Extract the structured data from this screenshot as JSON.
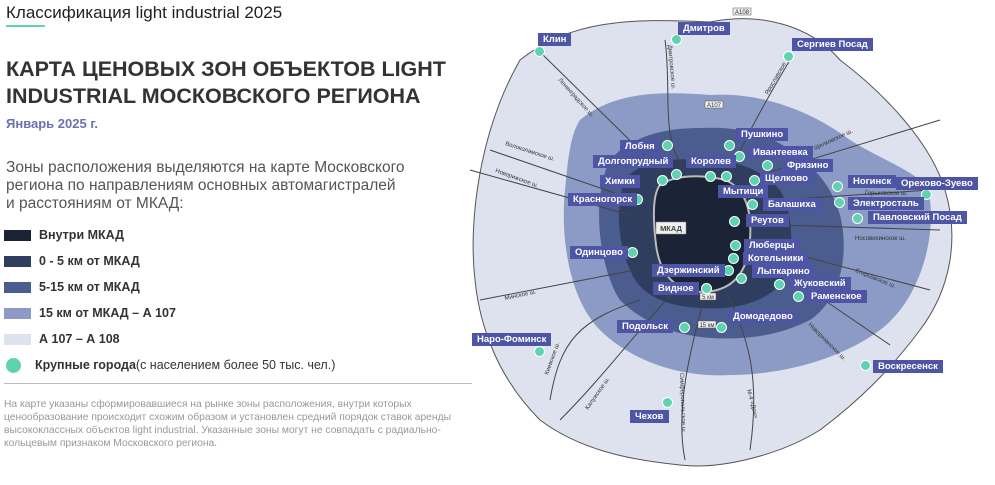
{
  "header": {
    "title": "Классификация light industrial 2025"
  },
  "main": {
    "title": "КАРТА ЦЕНОВЫХ ЗОН ОБЪЕКТОВ LIGHT INDUSTRIAL МОСКОВСКОГО РЕГИОНА",
    "date": "Январь 2025 г.",
    "intro": "Зоны расположения выделяются на карте Московского региона по направлениям основных автомагистралей и расстояниям от МКАД:",
    "note": "На карте указаны сформировавшиеся на рынке зоны расположения, внутри которых ценообразование происходит схожим образом и установлен средний порядок ставок аренды высококлассных объектов light industrial. Указанные зоны могут не совпадать с радиально-кольцевым признаком Московского региона."
  },
  "legend": {
    "zones": [
      {
        "label": "Внутри МКАД",
        "color": "#1b2437"
      },
      {
        "label": "0 - 5 км от МКАД",
        "color": "#2f3d5f"
      },
      {
        "label": "5-15 км от МКАД",
        "color": "#4b5c8e"
      },
      {
        "label": "15 км от МКАД – А 107",
        "color": "#8b9bc6"
      },
      {
        "label": "А 107 – А 108",
        "color": "#dde2ee"
      }
    ],
    "cities_bold": "Крупные города",
    "cities_rest": " (с населением более 50 тыс. чел.)",
    "city_color": "#5fd3b0"
  },
  "map": {
    "ring_labels": {
      "mkad": "МКАД",
      "a107": "A107",
      "a108": "A108",
      "km5": "5 км",
      "km15": "15 км"
    },
    "roads": [
      "Ленинградское ш.",
      "Дмитровское ш.",
      "Ярославское ш.",
      "Щелковское ш.",
      "Горьковское ш.",
      "Носовихинское ш.",
      "Егорьевское ш.",
      "Новорязанское ш.",
      "М-4 «Дон»",
      "Симферопольское ш.",
      "Калужское ш.",
      "Киевское ш.",
      "Минское ш.",
      "Новорижское ш.",
      "Волоколамское ш."
    ],
    "cities": [
      "Клин",
      "Дмитров",
      "Сергиев Посад",
      "Лобня",
      "Пушкино",
      "Ивантеевка",
      "Фрязино",
      "Долгопрудный",
      "Королев",
      "Химки",
      "Мытищи",
      "Щелково",
      "Красногорск",
      "Балашиха",
      "Реутов",
      "Ногинск",
      "Орехово-Зуево",
      "Электросталь",
      "Павловский Посад",
      "Одинцово",
      "Люберцы",
      "Котельники",
      "Дзержинский",
      "Лыткарино",
      "Жуковский",
      "Раменское",
      "Видное",
      "Домодедово",
      "Подольск",
      "Наро-Фоминск",
      "Воскресенск",
      "Чехов"
    ]
  }
}
